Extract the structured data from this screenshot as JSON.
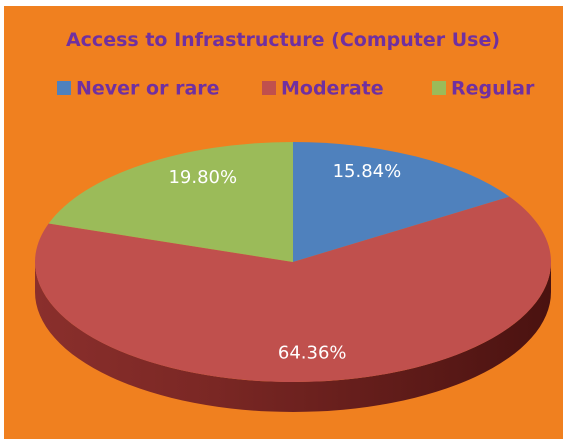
{
  "chart_data": {
    "type": "pie",
    "title": "Access to Infrastructure (Computer Use)",
    "categories": [
      "Never or rare",
      "Moderate",
      "Regular"
    ],
    "values": [
      15.84,
      64.36,
      19.8
    ],
    "value_labels": [
      "15.84%",
      "64.36%",
      "19.80%"
    ],
    "colors": [
      "#4f81bd",
      "#c0504d",
      "#9bbb59"
    ],
    "legend": "top"
  }
}
